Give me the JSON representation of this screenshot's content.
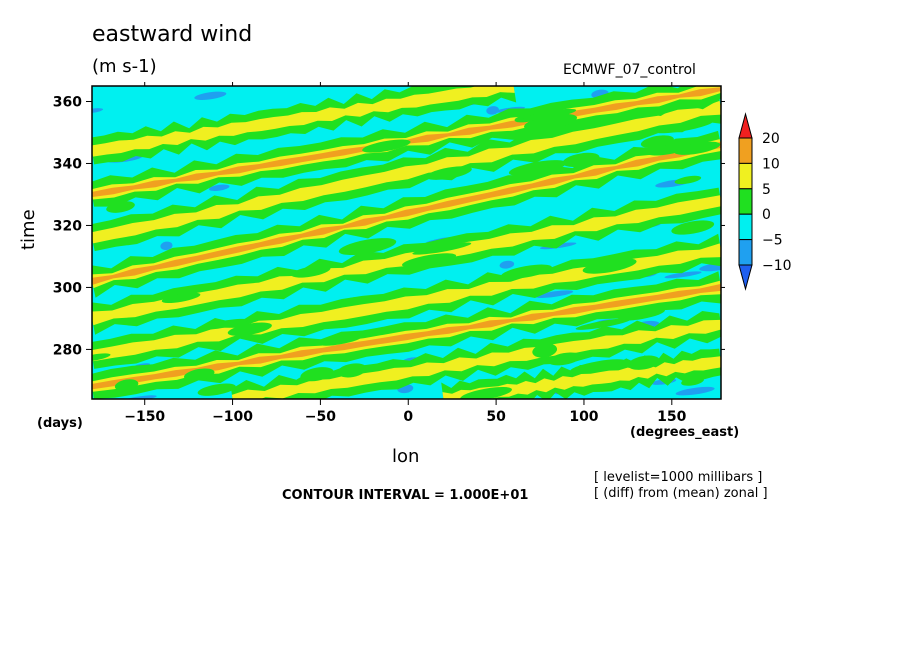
{
  "chart_data": {
    "type": "heatmap",
    "title": "eastward wind",
    "units": "(m s-1)",
    "dataset": "ECMWF_07_control",
    "xlabel": "lon",
    "xunits": "(degrees_east)",
    "ylabel": "time",
    "yunits": "(days)",
    "xlim": [
      -180,
      178
    ],
    "ylim": [
      264,
      365
    ],
    "x_ticks": [
      -150,
      -100,
      -50,
      0,
      50,
      100,
      150
    ],
    "y_ticks": [
      280,
      300,
      320,
      340,
      360
    ],
    "colorbar": {
      "levels": [
        -10,
        -5,
        0,
        5,
        10,
        20
      ],
      "labels": [
        "20",
        "10",
        "5",
        "0",
        "−5",
        "−10"
      ],
      "colors": {
        "below_minus10": "#1f5ff0",
        "minus10_to_minus5": "#1fa0f0",
        "minus5_to_0": "#00f0f0",
        "0_to_5": "#20e020",
        "5_to_10": "#f0f020",
        "10_to_20": "#f0a020",
        "above_20": "#f02020"
      }
    },
    "streaks": [
      {
        "x0": -180,
        "y0": 268,
        "x1": 178,
        "y1": 300,
        "value": 10
      },
      {
        "x0": -180,
        "y0": 278,
        "x1": 178,
        "y1": 312,
        "value": 7
      },
      {
        "x0": -180,
        "y0": 290,
        "x1": 178,
        "y1": 328,
        "value": 8
      },
      {
        "x0": -180,
        "y0": 302,
        "x1": 178,
        "y1": 346,
        "value": 11
      },
      {
        "x0": -180,
        "y0": 316,
        "x1": 178,
        "y1": 358,
        "value": 7
      },
      {
        "x0": -180,
        "y0": 330,
        "x1": 178,
        "y1": 364,
        "value": 12
      },
      {
        "x0": -180,
        "y0": 344,
        "x1": 60,
        "y1": 365,
        "value": 7
      },
      {
        "x0": -100,
        "y0": 264,
        "x1": 178,
        "y1": 288,
        "value": 6
      },
      {
        "x0": 20,
        "y0": 264,
        "x1": 178,
        "y1": 276,
        "value": 8
      }
    ],
    "note_lines": [
      "[ levelist=1000 millibars ]",
      "[ (diff) from (mean) zonal ]"
    ],
    "contour_interval": "CONTOUR INTERVAL = 1.000E+01"
  }
}
